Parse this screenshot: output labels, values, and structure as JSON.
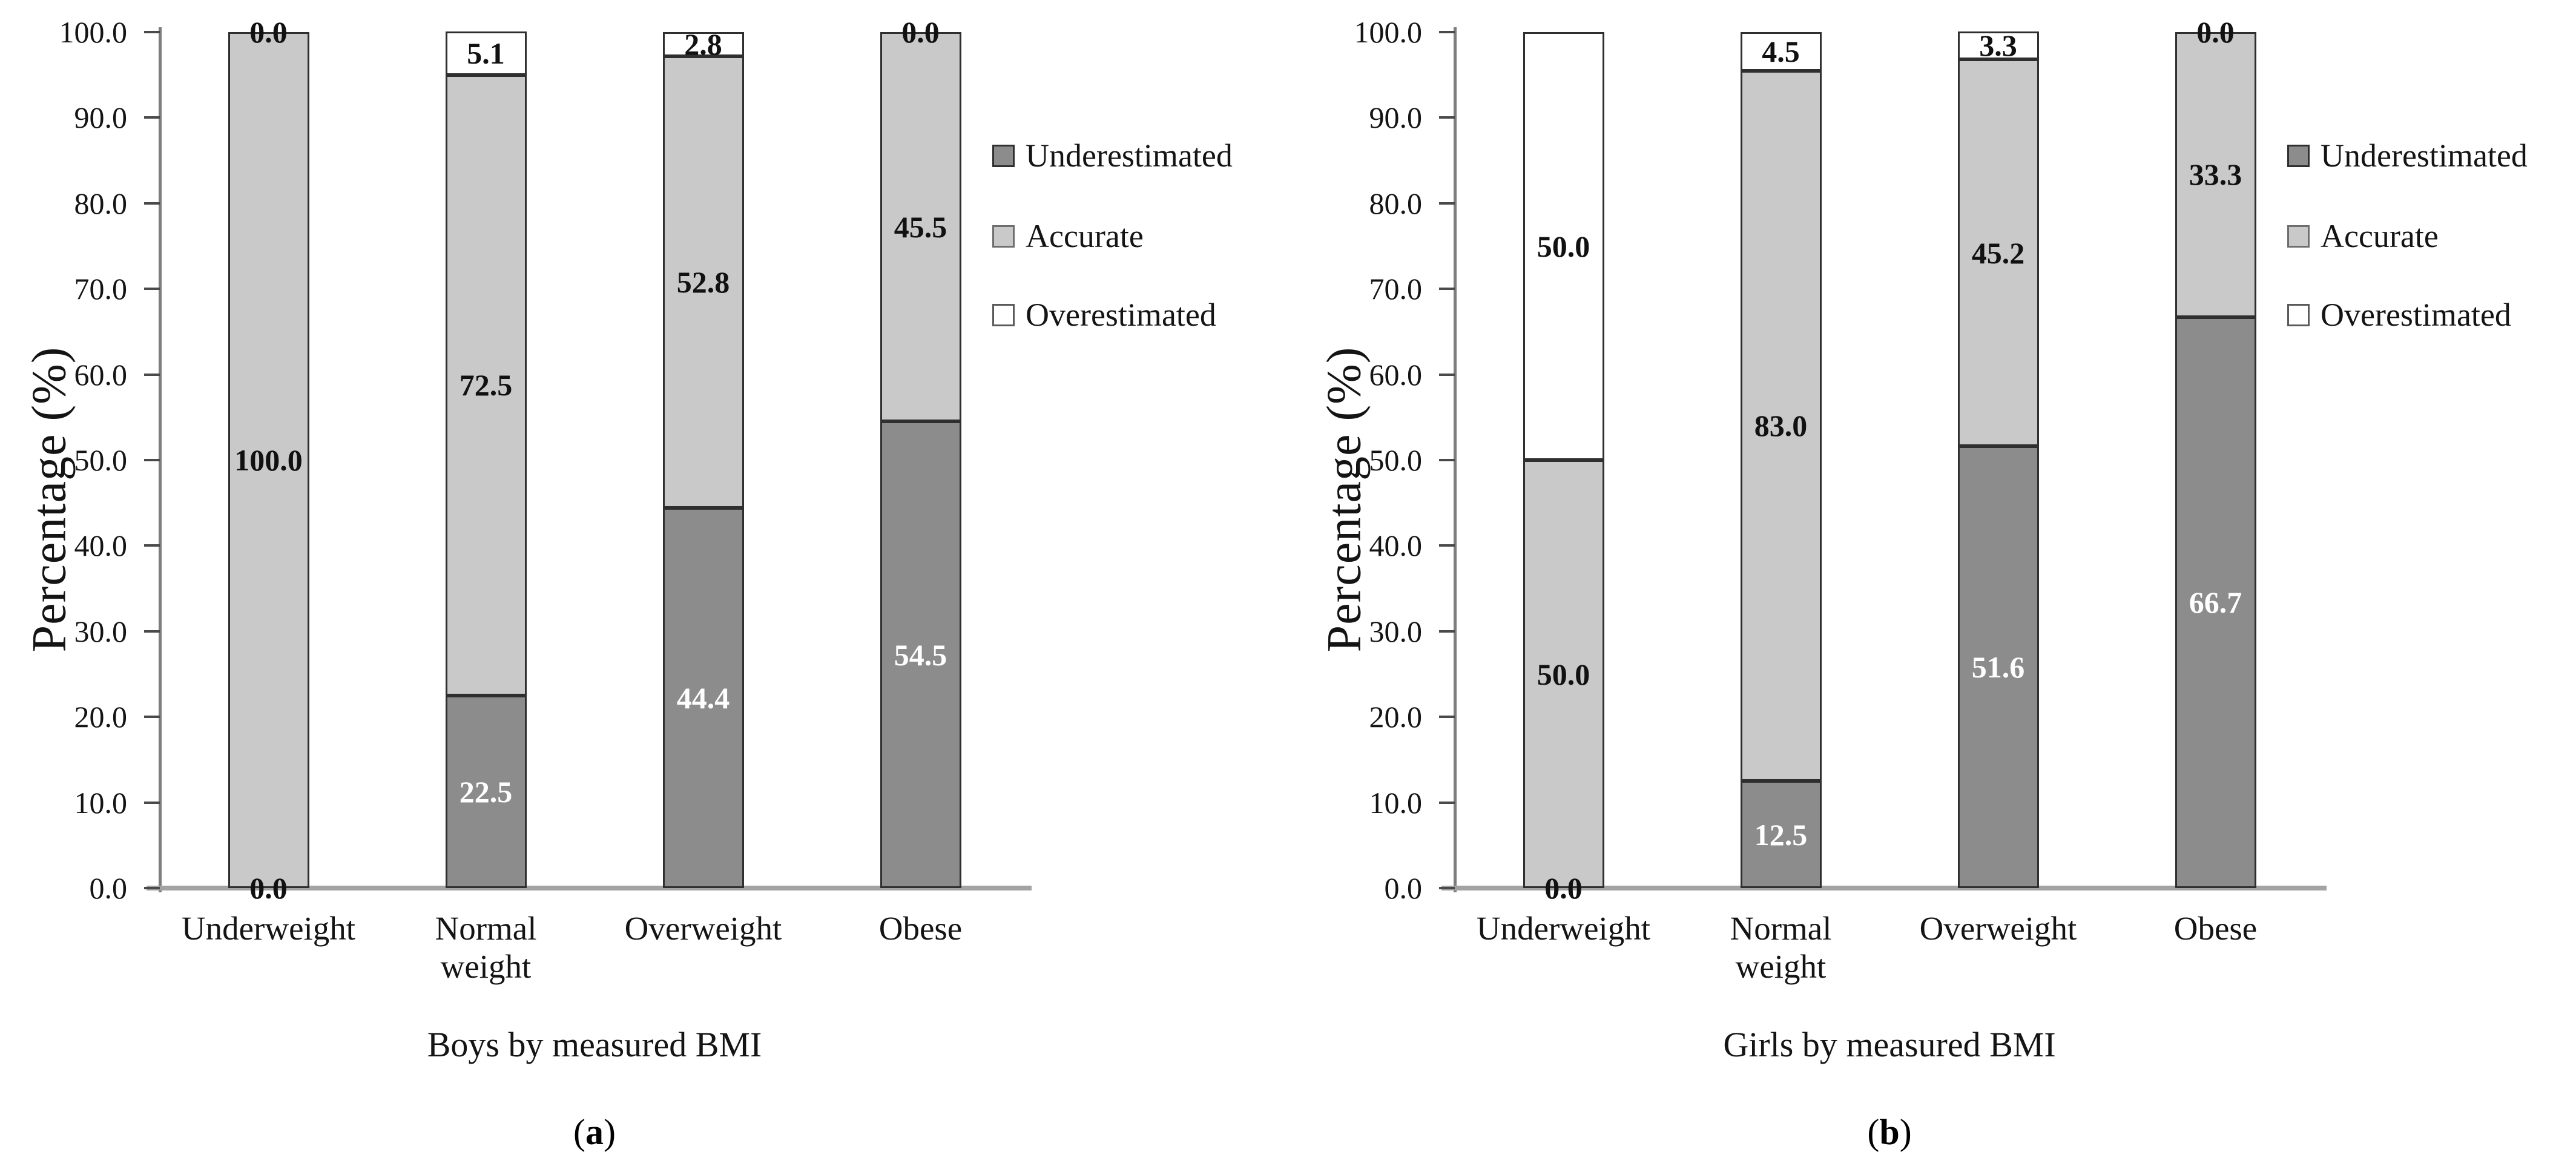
{
  "figure": {
    "y_axis": {
      "title": "Percentage (%)",
      "min": 0,
      "max": 100,
      "step": 10,
      "tick_decimals": 1
    },
    "legend": {
      "position": "right",
      "items": [
        {
          "label": "Underestimated",
          "color": "#8c8c8c",
          "border": "#2f2f2f",
          "label_color": "#ffffff"
        },
        {
          "label": "Accurate",
          "color": "#c9c9c9",
          "border": "#6e6e6e",
          "label_color": "#111111"
        },
        {
          "label": "Overestimated",
          "color": "#ffffff",
          "border": "#5a5a5a",
          "label_color": "#111111"
        }
      ]
    }
  },
  "chart_data": [
    {
      "type": "bar",
      "stacked": true,
      "orientation": "vertical",
      "panel_letter": "a",
      "caption": "Boys by measured BMI",
      "ylabel": "Percentage (%)",
      "ylim": [
        0,
        100
      ],
      "ytick_step": 10,
      "grid": false,
      "data_labels": true,
      "legend_position": "right",
      "categories": [
        "Underweight",
        "Normal weight",
        "Overweight",
        "Obese"
      ],
      "series": [
        {
          "name": "Underestimated",
          "values": [
            0.0,
            22.5,
            44.4,
            54.5
          ]
        },
        {
          "name": "Accurate",
          "values": [
            100.0,
            72.5,
            52.8,
            45.5
          ]
        },
        {
          "name": "Overestimated",
          "values": [
            0.0,
            5.1,
            2.8,
            0.0
          ]
        }
      ]
    },
    {
      "type": "bar",
      "stacked": true,
      "orientation": "vertical",
      "panel_letter": "b",
      "caption": "Girls by measured BMI",
      "ylabel": "Percentage (%)",
      "ylim": [
        0,
        100
      ],
      "ytick_step": 10,
      "grid": false,
      "data_labels": true,
      "legend_position": "right",
      "categories": [
        "Underweight",
        "Normal weight",
        "Overweight",
        "Obese"
      ],
      "series": [
        {
          "name": "Underestimated",
          "values": [
            0.0,
            12.5,
            51.6,
            66.7
          ]
        },
        {
          "name": "Accurate",
          "values": [
            50.0,
            83.0,
            45.2,
            33.3
          ]
        },
        {
          "name": "Overestimated",
          "values": [
            50.0,
            4.5,
            3.3,
            0.0
          ]
        }
      ]
    }
  ]
}
